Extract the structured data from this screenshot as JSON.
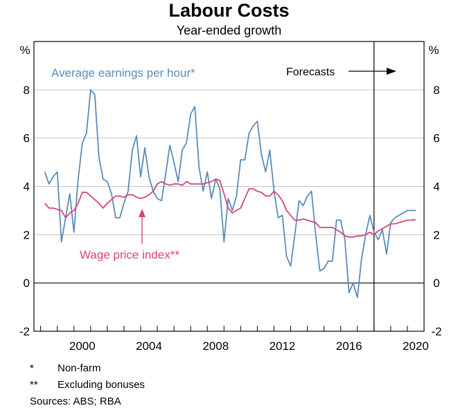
{
  "title": "Labour Costs",
  "subtitle": "Year-ended growth",
  "chart_data": {
    "type": "line",
    "unit_label": "%",
    "ylim": [
      -2,
      10
    ],
    "yticks": [
      -2,
      0,
      2,
      4,
      6,
      8
    ],
    "xlim": [
      1997.6,
      2021.0
    ],
    "xticks": [
      2000,
      2004,
      2008,
      2012,
      2016,
      2020
    ],
    "grid": true,
    "forecast_start": 2018.0,
    "forecast_label": "Forecasts",
    "series": [
      {
        "name": "Average earnings per hour*",
        "color": "#5b8bb8",
        "x": [
          1998.25,
          1998.5,
          1998.75,
          1999.0,
          1999.25,
          1999.5,
          1999.75,
          2000.0,
          2000.25,
          2000.5,
          2000.75,
          2001.0,
          2001.25,
          2001.5,
          2001.75,
          2002.0,
          2002.25,
          2002.5,
          2002.75,
          2003.0,
          2003.25,
          2003.5,
          2003.75,
          2004.0,
          2004.25,
          2004.5,
          2004.75,
          2005.0,
          2005.25,
          2005.5,
          2005.75,
          2006.0,
          2006.25,
          2006.5,
          2006.75,
          2007.0,
          2007.25,
          2007.5,
          2007.75,
          2008.0,
          2008.25,
          2008.5,
          2008.75,
          2009.0,
          2009.25,
          2009.5,
          2009.75,
          2010.0,
          2010.25,
          2010.5,
          2010.75,
          2011.0,
          2011.25,
          2011.5,
          2011.75,
          2012.0,
          2012.25,
          2012.5,
          2012.75,
          2013.0,
          2013.25,
          2013.5,
          2013.75,
          2014.0,
          2014.25,
          2014.5,
          2014.75,
          2015.0,
          2015.25,
          2015.5,
          2015.75,
          2016.0,
          2016.25,
          2016.5,
          2016.75,
          2017.0,
          2017.25,
          2017.5,
          2017.75,
          2018.0,
          2018.25,
          2018.5,
          2018.75,
          2019.0,
          2019.25,
          2019.5,
          2019.75,
          2020.0,
          2020.25,
          2020.5
        ],
        "values": [
          4.6,
          4.1,
          4.4,
          4.6,
          1.7,
          2.7,
          3.7,
          2.1,
          4.3,
          5.8,
          6.2,
          8.0,
          7.8,
          5.2,
          4.3,
          4.2,
          3.7,
          2.7,
          2.7,
          3.3,
          3.8,
          5.5,
          6.1,
          4.4,
          5.6,
          4.4,
          3.8,
          3.5,
          3.4,
          4.5,
          5.7,
          5.0,
          4.2,
          5.5,
          5.8,
          7.0,
          7.3,
          4.8,
          3.8,
          4.6,
          3.5,
          4.3,
          3.9,
          1.7,
          3.5,
          3.0,
          3.6,
          5.1,
          5.1,
          6.2,
          6.5,
          6.7,
          5.3,
          4.6,
          5.5,
          3.8,
          2.7,
          2.8,
          1.1,
          0.7,
          2.0,
          3.4,
          3.2,
          3.6,
          3.8,
          2.0,
          0.5,
          0.6,
          0.9,
          0.9,
          2.6,
          2.6,
          1.8,
          -0.4,
          0.0,
          -0.6,
          1.0,
          2.0,
          2.8,
          2.1,
          1.8,
          2.2,
          1.2,
          2.5,
          2.7,
          2.8,
          2.9,
          3.0,
          3.0,
          3.0
        ]
      },
      {
        "name": "Wage price index**",
        "color": "#d6466e",
        "x": [
          1998.25,
          1998.5,
          1998.75,
          1999.0,
          1999.25,
          1999.5,
          1999.75,
          2000.0,
          2000.25,
          2000.5,
          2000.75,
          2001.0,
          2001.25,
          2001.5,
          2001.75,
          2002.0,
          2002.25,
          2002.5,
          2002.75,
          2003.0,
          2003.25,
          2003.5,
          2003.75,
          2004.0,
          2004.25,
          2004.5,
          2004.75,
          2005.0,
          2005.25,
          2005.5,
          2005.75,
          2006.0,
          2006.25,
          2006.5,
          2006.75,
          2007.0,
          2007.25,
          2007.5,
          2007.75,
          2008.0,
          2008.25,
          2008.5,
          2008.75,
          2009.0,
          2009.25,
          2009.5,
          2009.75,
          2010.0,
          2010.25,
          2010.5,
          2010.75,
          2011.0,
          2011.25,
          2011.5,
          2011.75,
          2012.0,
          2012.25,
          2012.5,
          2012.75,
          2013.0,
          2013.25,
          2013.5,
          2013.75,
          2014.0,
          2014.25,
          2014.5,
          2014.75,
          2015.0,
          2015.25,
          2015.5,
          2015.75,
          2016.0,
          2016.25,
          2016.5,
          2016.75,
          2017.0,
          2017.25,
          2017.5,
          2017.75,
          2018.0,
          2018.25,
          2018.5,
          2018.75,
          2019.0,
          2019.25,
          2019.5,
          2019.75,
          2020.0,
          2020.25,
          2020.5
        ],
        "values": [
          3.3,
          3.1,
          3.1,
          3.05,
          3.0,
          2.7,
          2.9,
          3.0,
          3.3,
          3.75,
          3.75,
          3.6,
          3.45,
          3.3,
          3.1,
          3.3,
          3.45,
          3.6,
          3.6,
          3.55,
          3.65,
          3.65,
          3.55,
          3.5,
          3.55,
          3.65,
          3.8,
          4.1,
          4.2,
          4.1,
          4.05,
          4.1,
          4.1,
          4.05,
          4.2,
          4.1,
          4.1,
          4.1,
          4.1,
          4.15,
          4.2,
          4.3,
          4.25,
          3.7,
          3.1,
          2.9,
          3.0,
          3.1,
          3.5,
          3.9,
          3.9,
          3.8,
          3.75,
          3.6,
          3.6,
          3.8,
          3.65,
          3.4,
          3.0,
          2.8,
          2.6,
          2.6,
          2.65,
          2.6,
          2.55,
          2.5,
          2.3,
          2.3,
          2.3,
          2.3,
          2.2,
          2.1,
          1.95,
          1.9,
          1.9,
          1.95,
          1.95,
          2.0,
          2.1,
          2.0,
          2.15,
          2.25,
          2.35,
          2.45,
          2.45,
          2.5,
          2.55,
          2.6,
          2.6,
          2.62
        ]
      }
    ],
    "annotations": {
      "series_label_1": "Average earnings per hour*",
      "series_label_2": "Wage price index**"
    }
  },
  "notes": [
    {
      "mark": "*",
      "text": "Non-farm"
    },
    {
      "mark": "**",
      "text": "Excluding bonuses"
    }
  ],
  "sources": "Sources: ABS; RBA"
}
